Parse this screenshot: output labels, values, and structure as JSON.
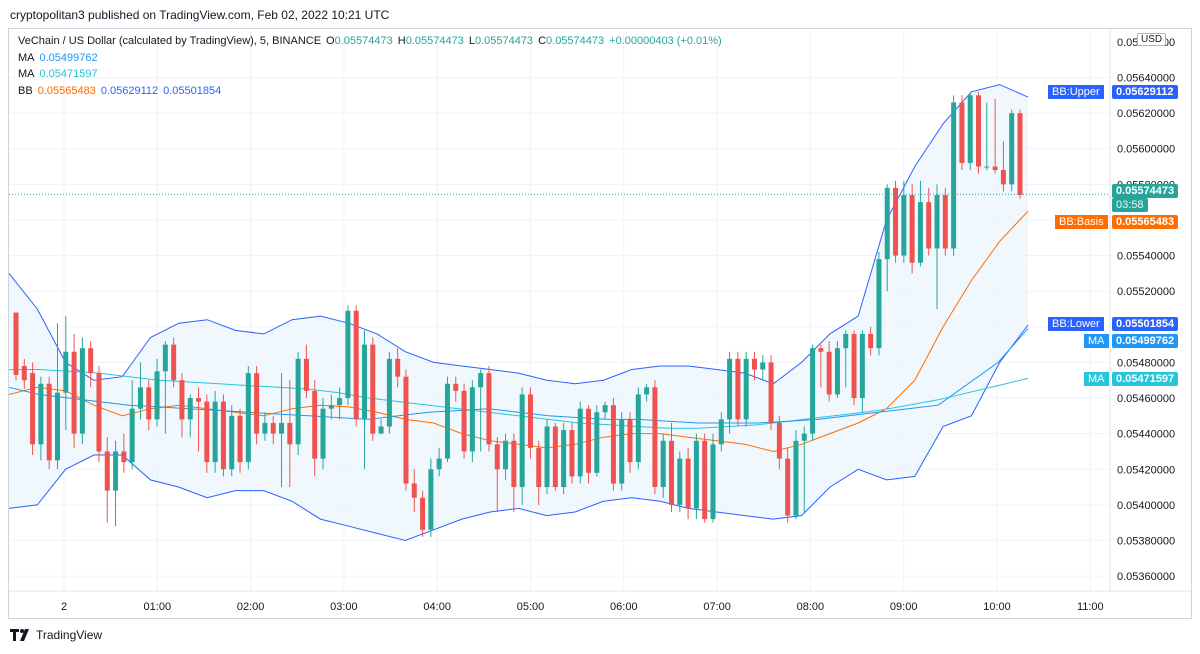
{
  "publisher": "cryptopolitan3 published on TradingView.com, Feb 02, 2022 10:21 UTC",
  "legend": {
    "symbol": "VeChain / US Dollar (calculated by TradingView), 5, BINANCE",
    "o_label": "O",
    "o_value": "0.05574473",
    "h_label": "H",
    "h_value": "0.05574473",
    "l_label": "L",
    "l_value": "0.05574473",
    "c_label": "C",
    "c_value": "0.05574473",
    "change": "+0.00000403 (+0.01%)",
    "ma1_label": "MA",
    "ma1_value": "0.05499762",
    "ma2_label": "MA",
    "ma2_value": "0.05471597",
    "bb_label": "BB",
    "bb_basis": "0.05565483",
    "bb_upper": "0.05629112",
    "bb_lower": "0.05501854"
  },
  "currency_button": "USD",
  "price_scale": {
    "top_partial": "0.05660000",
    "ticks": [
      "0.05640000",
      "0.05620000",
      "0.05600000",
      "0.05580000",
      "0.05560000",
      "0.05540000",
      "0.05520000",
      "0.05500000",
      "0.05480000",
      "0.05460000",
      "0.05440000",
      "0.05420000",
      "0.05400000",
      "0.05380000",
      "0.05360000"
    ]
  },
  "time_scale": {
    "ticks": [
      "2",
      "01:00",
      "02:00",
      "03:00",
      "04:00",
      "05:00",
      "06:00",
      "07:00",
      "08:00",
      "09:00",
      "10:00",
      "11:00"
    ]
  },
  "price_labels": {
    "bb_upper": {
      "name": "BB:Upper",
      "value": "0.05629112"
    },
    "last": {
      "value": "0.05574473",
      "countdown": "03:58"
    },
    "bb_basis": {
      "name": "BB:Basis",
      "value": "0.05565483"
    },
    "bb_lower": {
      "name": "BB:Lower",
      "value": "0.05501854"
    },
    "ma1": {
      "name": "MA",
      "value": "0.05499762"
    },
    "ma2": {
      "name": "MA",
      "value": "0.05471597"
    }
  },
  "colors": {
    "up": "#26a69a",
    "down": "#ef5350",
    "bb_band": "#2962ff",
    "bb_basis": "#ff6d00",
    "ma1": "#2196f3",
    "ma2": "#26c6da",
    "band_fill": "#e3f2fd"
  },
  "footer": {
    "brand": "TradingView"
  },
  "chart_data": {
    "type": "candlestick",
    "symbol": "VET/USD",
    "interval": "5",
    "x_range": [
      "00:00",
      "11:00"
    ],
    "ylim": [
      0.05355,
      0.05665
    ],
    "candles": [
      [
        0.05508,
        0.05473,
        0.05485,
        0.0547
      ],
      [
        0.05478,
        0.0547,
        0.05482,
        0.05465
      ],
      [
        0.05474,
        0.05434,
        0.0548,
        0.05428
      ],
      [
        0.05434,
        0.05468,
        0.05472,
        0.05425
      ],
      [
        0.05468,
        0.05425,
        0.05472,
        0.0542
      ],
      [
        0.05425,
        0.05463,
        0.05502,
        0.0542
      ],
      [
        0.05463,
        0.05486,
        0.05506,
        0.05442
      ],
      [
        0.05486,
        0.0544,
        0.05496,
        0.05432
      ],
      [
        0.0544,
        0.05488,
        0.05494,
        0.05434
      ],
      [
        0.05488,
        0.05474,
        0.05492,
        0.05466
      ],
      [
        0.05474,
        0.0543,
        0.05478,
        0.05424
      ],
      [
        0.0543,
        0.05408,
        0.05438,
        0.0539
      ],
      [
        0.05408,
        0.0543,
        0.05436,
        0.05388
      ],
      [
        0.0543,
        0.05424,
        0.0544,
        0.05418
      ],
      [
        0.05424,
        0.05454,
        0.0547,
        0.0542
      ],
      [
        0.05454,
        0.05466,
        0.0548,
        0.05448
      ],
      [
        0.05466,
        0.05448,
        0.0547,
        0.05442
      ],
      [
        0.05448,
        0.05475,
        0.05482,
        0.05444
      ],
      [
        0.05475,
        0.0549,
        0.05492,
        0.0544
      ],
      [
        0.0549,
        0.0547,
        0.05494,
        0.05466
      ],
      [
        0.0547,
        0.05448,
        0.05474,
        0.05438
      ],
      [
        0.05448,
        0.0546,
        0.05462,
        0.05438
      ],
      [
        0.0546,
        0.05458,
        0.05466,
        0.0543
      ],
      [
        0.05458,
        0.05424,
        0.05462,
        0.05418
      ],
      [
        0.05424,
        0.05458,
        0.05464,
        0.05418
      ],
      [
        0.05458,
        0.0542,
        0.05462,
        0.05416
      ],
      [
        0.0542,
        0.0545,
        0.05456,
        0.05416
      ],
      [
        0.0545,
        0.05424,
        0.05454,
        0.05418
      ],
      [
        0.05424,
        0.05474,
        0.05478,
        0.0542
      ],
      [
        0.05474,
        0.0544,
        0.05478,
        0.05434
      ],
      [
        0.0544,
        0.05446,
        0.05452,
        0.05436
      ],
      [
        0.05446,
        0.0544,
        0.0545,
        0.05434
      ],
      [
        0.0544,
        0.05446,
        0.05474,
        0.0541
      ],
      [
        0.05446,
        0.05434,
        0.0547,
        0.0541
      ],
      [
        0.05434,
        0.05482,
        0.05486,
        0.05428
      ],
      [
        0.05482,
        0.05464,
        0.0549,
        0.0546
      ],
      [
        0.05464,
        0.05426,
        0.0547,
        0.05416
      ],
      [
        0.05426,
        0.05454,
        0.0546,
        0.0542
      ],
      [
        0.05454,
        0.05456,
        0.05462,
        0.05448
      ],
      [
        0.05456,
        0.0546,
        0.05466,
        0.05448
      ],
      [
        0.0546,
        0.05509,
        0.05512,
        0.05456
      ],
      [
        0.05509,
        0.05448,
        0.05512,
        0.05444
      ],
      [
        0.05448,
        0.0549,
        0.05498,
        0.0542
      ],
      [
        0.0549,
        0.0544,
        0.05494,
        0.05436
      ],
      [
        0.0544,
        0.05444,
        0.05448,
        0.0544
      ],
      [
        0.05444,
        0.05482,
        0.05486,
        0.0544
      ],
      [
        0.05482,
        0.05472,
        0.05488,
        0.05466
      ],
      [
        0.05472,
        0.05412,
        0.05476,
        0.05408
      ],
      [
        0.05412,
        0.05404,
        0.0542,
        0.05396
      ],
      [
        0.05404,
        0.05386,
        0.05408,
        0.05382
      ],
      [
        0.05386,
        0.0542,
        0.05426,
        0.05382
      ],
      [
        0.0542,
        0.05426,
        0.05432,
        0.05416
      ],
      [
        0.05426,
        0.05468,
        0.05472,
        0.05424
      ],
      [
        0.05468,
        0.05464,
        0.05472,
        0.05458
      ],
      [
        0.05464,
        0.0543,
        0.05468,
        0.05426
      ],
      [
        0.0543,
        0.05466,
        0.0547,
        0.05424
      ],
      [
        0.05466,
        0.05474,
        0.05476,
        0.0543
      ],
      [
        0.05474,
        0.05434,
        0.05478,
        0.0543
      ],
      [
        0.05434,
        0.0542,
        0.05438,
        0.05396
      ],
      [
        0.0542,
        0.05436,
        0.0544,
        0.05414
      ],
      [
        0.05436,
        0.0541,
        0.0544,
        0.05396
      ],
      [
        0.0541,
        0.05462,
        0.05466,
        0.054
      ],
      [
        0.05462,
        0.05432,
        0.05466,
        0.05426
      ],
      [
        0.05432,
        0.0541,
        0.05436,
        0.054
      ],
      [
        0.0541,
        0.05444,
        0.05448,
        0.05406
      ],
      [
        0.05444,
        0.0541,
        0.05446,
        0.05408
      ],
      [
        0.0541,
        0.05442,
        0.05446,
        0.05406
      ],
      [
        0.05442,
        0.05416,
        0.05446,
        0.05412
      ],
      [
        0.05416,
        0.05454,
        0.05458,
        0.05412
      ],
      [
        0.05454,
        0.05418,
        0.05456,
        0.05412
      ],
      [
        0.05418,
        0.05452,
        0.05456,
        0.05416
      ],
      [
        0.05452,
        0.05456,
        0.05458,
        0.05448
      ],
      [
        0.05456,
        0.05412,
        0.0546,
        0.05408
      ],
      [
        0.05412,
        0.05448,
        0.05452,
        0.05408
      ],
      [
        0.05448,
        0.05424,
        0.05452,
        0.05418
      ],
      [
        0.05424,
        0.05462,
        0.05466,
        0.0542
      ],
      [
        0.05462,
        0.05466,
        0.05468,
        0.05458
      ],
      [
        0.05466,
        0.0541,
        0.0547,
        0.05406
      ],
      [
        0.0541,
        0.05436,
        0.0544,
        0.05404
      ],
      [
        0.05436,
        0.054,
        0.05446,
        0.05396
      ],
      [
        0.054,
        0.05426,
        0.0543,
        0.05396
      ],
      [
        0.05426,
        0.05398,
        0.05432,
        0.05392
      ],
      [
        0.05398,
        0.05436,
        0.0544,
        0.05392
      ],
      [
        0.05436,
        0.05392,
        0.0544,
        0.0539
      ],
      [
        0.05392,
        0.05434,
        0.0544,
        0.0539
      ],
      [
        0.05434,
        0.05448,
        0.05452,
        0.0543
      ],
      [
        0.05448,
        0.05482,
        0.05486,
        0.0544
      ],
      [
        0.05482,
        0.05448,
        0.05486,
        0.05444
      ],
      [
        0.05448,
        0.05482,
        0.05486,
        0.05444
      ],
      [
        0.05482,
        0.05476,
        0.05486,
        0.0547
      ],
      [
        0.05476,
        0.0548,
        0.05484,
        0.0547
      ],
      [
        0.0548,
        0.05446,
        0.05484,
        0.05442
      ],
      [
        0.05446,
        0.05426,
        0.0545,
        0.0542
      ],
      [
        0.05426,
        0.05394,
        0.05432,
        0.0539
      ],
      [
        0.05394,
        0.05436,
        0.05442,
        0.05392
      ],
      [
        0.05436,
        0.0544,
        0.05444,
        0.05396
      ],
      [
        0.0544,
        0.05488,
        0.0549,
        0.05436
      ],
      [
        0.05488,
        0.05486,
        0.0549,
        0.05466
      ],
      [
        0.05486,
        0.05462,
        0.05492,
        0.05458
      ],
      [
        0.05462,
        0.05488,
        0.05492,
        0.0546
      ],
      [
        0.05488,
        0.05496,
        0.05498,
        0.05466
      ],
      [
        0.05496,
        0.0546,
        0.05498,
        0.05456
      ],
      [
        0.0546,
        0.05496,
        0.05498,
        0.05452
      ],
      [
        0.05496,
        0.05488,
        0.055,
        0.05484
      ],
      [
        0.05488,
        0.05538,
        0.05542,
        0.05484
      ],
      [
        0.05538,
        0.05578,
        0.0558,
        0.0552
      ],
      [
        0.05578,
        0.0554,
        0.05582,
        0.05536
      ],
      [
        0.0554,
        0.05574,
        0.05582,
        0.05536
      ],
      [
        0.05574,
        0.05536,
        0.0558,
        0.0553
      ],
      [
        0.05536,
        0.0557,
        0.05582,
        0.05534
      ],
      [
        0.0557,
        0.05544,
        0.05578,
        0.0554
      ],
      [
        0.05544,
        0.05574,
        0.0558,
        0.0551
      ],
      [
        0.05574,
        0.05544,
        0.05578,
        0.0554
      ],
      [
        0.05544,
        0.05626,
        0.0563,
        0.0554
      ],
      [
        0.05626,
        0.05592,
        0.0563,
        0.05588
      ],
      [
        0.05592,
        0.0563,
        0.05632,
        0.05588
      ],
      [
        0.0563,
        0.0559,
        0.05632,
        0.05586
      ],
      [
        0.0559,
        0.0559,
        0.05626,
        0.05588
      ],
      [
        0.0559,
        0.05588,
        0.05628,
        0.05586
      ],
      [
        0.05588,
        0.0558,
        0.05604,
        0.05576
      ],
      [
        0.0558,
        0.0562,
        0.05622,
        0.05576
      ],
      [
        0.0562,
        0.05574,
        0.05622,
        0.05572
      ]
    ],
    "ma_fast": [
      0.05466,
      0.05462,
      0.0546,
      0.05458,
      0.05456,
      0.05455,
      0.05454,
      0.05453,
      0.05452,
      0.05451,
      0.0545,
      0.05449,
      0.05448,
      0.0545,
      0.05452,
      0.05453,
      0.05454,
      0.05452,
      0.0545,
      0.05449,
      0.05448,
      0.05448,
      0.05447,
      0.05446,
      0.05446,
      0.05446,
      0.05447,
      0.05448,
      0.0545,
      0.05452,
      0.05454,
      0.05456,
      0.05468,
      0.0548,
      0.05499
    ],
    "ma_slow": [
      0.05476,
      0.05476,
      0.05475,
      0.05474,
      0.05472,
      0.0547,
      0.05469,
      0.05468,
      0.05467,
      0.05466,
      0.05465,
      0.05463,
      0.0546,
      0.05458,
      0.05456,
      0.05454,
      0.05452,
      0.0545,
      0.05448,
      0.05446,
      0.05445,
      0.05444,
      0.05443,
      0.05443,
      0.05444,
      0.05445,
      0.05447,
      0.05449,
      0.05451,
      0.05453,
      0.05456,
      0.05459,
      0.05463,
      0.05467,
      0.05471
    ],
    "bb_basis": [
      0.05462,
      0.05466,
      0.05464,
      0.05456,
      0.0545,
      0.05454,
      0.05456,
      0.05454,
      0.05452,
      0.0545,
      0.05454,
      0.05456,
      0.05455,
      0.05452,
      0.05448,
      0.05446,
      0.0544,
      0.05436,
      0.05434,
      0.05432,
      0.05434,
      0.05438,
      0.0544,
      0.0544,
      0.05438,
      0.05436,
      0.05434,
      0.0543,
      0.05434,
      0.0544,
      0.05446,
      0.05454,
      0.0547,
      0.055,
      0.05526,
      0.05548,
      0.05565
    ],
    "bb_upper": [
      0.0553,
      0.0551,
      0.0548,
      0.0547,
      0.05472,
      0.05494,
      0.05502,
      0.05504,
      0.05498,
      0.05496,
      0.05504,
      0.05506,
      0.05502,
      0.05496,
      0.05486,
      0.0548,
      0.05478,
      0.05476,
      0.05474,
      0.0547,
      0.05468,
      0.0547,
      0.05476,
      0.05478,
      0.05478,
      0.05476,
      0.05474,
      0.05468,
      0.0548,
      0.05496,
      0.05506,
      0.0556,
      0.0559,
      0.05614,
      0.05632,
      0.05636,
      0.05629
    ],
    "bb_lower": [
      0.05398,
      0.054,
      0.0542,
      0.05428,
      0.05428,
      0.05414,
      0.0541,
      0.05404,
      0.05408,
      0.05408,
      0.05402,
      0.05392,
      0.05388,
      0.05384,
      0.0538,
      0.05386,
      0.05392,
      0.05396,
      0.05398,
      0.05394,
      0.05396,
      0.05402,
      0.05404,
      0.05402,
      0.05398,
      0.05396,
      0.05394,
      0.05392,
      0.05394,
      0.0541,
      0.0542,
      0.05414,
      0.05416,
      0.05444,
      0.0545,
      0.0548,
      0.05501
    ]
  }
}
